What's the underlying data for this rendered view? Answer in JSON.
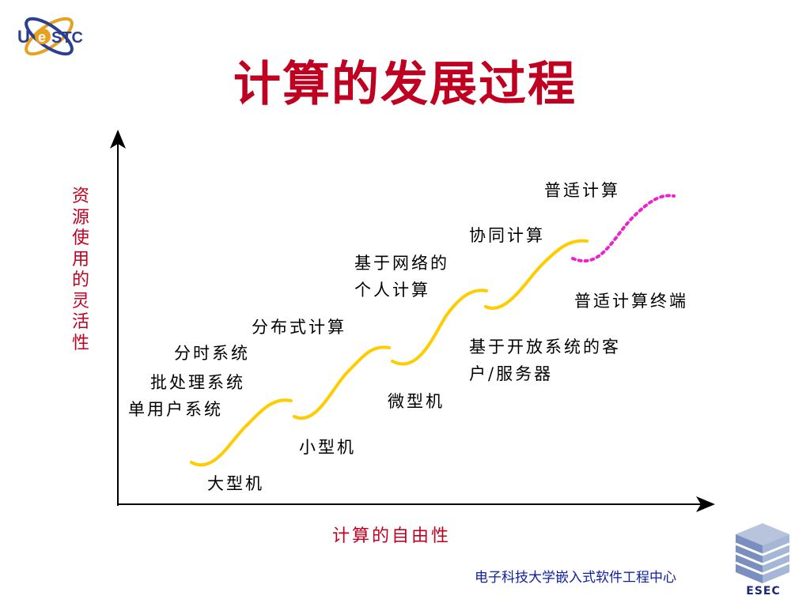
{
  "slide": {
    "title": "计算的发展过程",
    "y_axis_label": "资源使用的灵活性",
    "x_axis_label": "计算的自由性",
    "footer": "电子科技大学嵌入式软件工程中心"
  },
  "logos": {
    "left": "UESTC",
    "right": "ESEC"
  },
  "labels": {
    "stage1_a": "分时系统",
    "stage1_b": "批处理系统",
    "stage1_c": "单用户系统",
    "stage1_d": "大型机",
    "stage2_a": "分布式计算",
    "stage2_b": "小型机",
    "stage3_a_line1": "基于网络的",
    "stage3_a_line2": "个人计算",
    "stage3_b": "微型机",
    "stage4_a": "协同计算",
    "stage4_b_line1": "基于开放系统的客",
    "stage4_b_line2": "户/服务器",
    "stage5_a": "普适计算",
    "stage5_b": "普适计算终端"
  },
  "colors": {
    "title": "#c00020",
    "axis_label": "#c00020",
    "curve": "#ffcc00",
    "future_curve": "#ee22cc",
    "footer": "#1020a0"
  }
}
